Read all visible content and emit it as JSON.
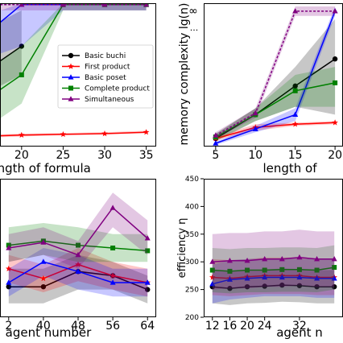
{
  "chart_data": [
    {
      "type": "line",
      "xlabel": "length of formula",
      "ylabel": "",
      "xlim": [
        17.4,
        36.2
      ],
      "ylim": [
        0,
        10
      ],
      "x": [
        15,
        20,
        25,
        30,
        35
      ],
      "xticks": [
        "20",
        "25",
        "30",
        "35"
      ],
      "series": [
        {
          "name": "Basic buchi",
          "color": "#000000",
          "marker": "circle",
          "values": [
            5,
            7,
            null,
            null,
            null
          ],
          "band_lo": [
            3.5,
            5,
            null,
            null,
            null
          ],
          "band_hi": [
            8,
            9.5,
            null,
            null,
            null
          ]
        },
        {
          "name": "First product",
          "color": "#ff0000",
          "marker": "star",
          "values": [
            0.7,
            0.8,
            0.85,
            0.9,
            1.0
          ],
          "band_lo": [
            0.6,
            0.7,
            0.8,
            0.85,
            0.95
          ],
          "band_hi": [
            0.8,
            0.9,
            0.95,
            1.0,
            1.1
          ]
        },
        {
          "name": "Basic poset",
          "color": "#0000ff",
          "marker": "triangle",
          "values": [
            7.5,
            9.9,
            9.9,
            9.9,
            9.9
          ],
          "band_lo": [
            6,
            7,
            9.5,
            9.5,
            9.5
          ],
          "band_hi": [
            9,
            10,
            10,
            10,
            10
          ]
        },
        {
          "name": "Complete product",
          "color": "#008000",
          "marker": "square",
          "values": [
            3,
            5,
            9.9,
            9.9,
            9.9
          ],
          "band_lo": [
            1,
            3,
            9.5,
            9.5,
            9.5
          ],
          "band_hi": [
            5,
            7,
            10,
            10,
            10
          ]
        },
        {
          "name": "Simultaneous",
          "color": "#800080",
          "marker": "triangle",
          "values": [
            9.9,
            9.9,
            9.9,
            9.9,
            9.9
          ],
          "band_lo": [
            9.5,
            9.5,
            9.5,
            9.5,
            9.5
          ],
          "band_hi": [
            10,
            10,
            10,
            10,
            10
          ]
        }
      ],
      "legend": "right",
      "grid": false
    },
    {
      "type": "line",
      "xlabel": "length of",
      "ylabel": "memory complexity lg(n)",
      "xlim": [
        3.5,
        21
      ],
      "ylim": [
        1,
        10
      ],
      "x": [
        5,
        10,
        15,
        20
      ],
      "xticks": [
        "5",
        "10",
        "15",
        "20"
      ],
      "yticks": [
        "∞",
        "..."
      ],
      "series": [
        {
          "name": "Basic buchi",
          "color": "#000000",
          "values": [
            1.5,
            3,
            4.8,
            6.5
          ],
          "band_lo": [
            1.3,
            2.6,
            3.5,
            3
          ],
          "band_hi": [
            1.8,
            3.4,
            6,
            9
          ]
        },
        {
          "name": "First product",
          "color": "#ff0000",
          "values": [
            1.5,
            2.2,
            2.4,
            2.5
          ],
          "band_lo": [
            1.4,
            2.0,
            2.3,
            2.4
          ],
          "band_hi": [
            1.6,
            2.4,
            2.5,
            2.6
          ]
        },
        {
          "name": "Basic poset",
          "color": "#0000ff",
          "values": [
            1.2,
            2.1,
            3,
            9.5
          ],
          "band_lo": [
            1.1,
            1.9,
            2.6,
            9.2
          ],
          "band_hi": [
            1.3,
            2.3,
            3.4,
            9.8
          ]
        },
        {
          "name": "Complete product",
          "color": "#008000",
          "values": [
            1.6,
            3,
            4.5,
            5
          ],
          "band_lo": [
            1.4,
            2.6,
            3.5,
            3.5
          ],
          "band_hi": [
            1.8,
            3.4,
            5.5,
            6
          ]
        },
        {
          "name": "Simultaneous",
          "color": "#800080",
          "values": [
            1.7,
            3.1,
            9.5,
            9.5
          ],
          "band_lo": [
            1.5,
            2.8,
            9.2,
            9.2
          ],
          "band_hi": [
            1.9,
            3.4,
            9.8,
            9.8
          ]
        }
      ],
      "grid": false
    },
    {
      "type": "line",
      "xlabel": "agent number",
      "ylabel": "",
      "xlim": [
        30,
        66
      ],
      "ylim": [
        0,
        10
      ],
      "x": [
        32,
        40,
        48,
        56,
        64
      ],
      "xticks": [
        "2",
        "40",
        "48",
        "56",
        "64"
      ],
      "series": [
        {
          "name": "Basic buchi",
          "color": "#000000",
          "values": [
            2.2,
            2.2,
            3.3,
            3.0,
            2.0
          ],
          "band_lo": [
            1.0,
            1.0,
            2.0,
            2.0,
            1.0
          ],
          "band_hi": [
            3.5,
            3.5,
            4.5,
            4.0,
            3.0
          ]
        },
        {
          "name": "First product",
          "color": "#ff0000",
          "values": [
            3.5,
            2.8,
            3.8,
            3.0,
            2.5
          ],
          "band_lo": [
            2.5,
            1.8,
            2.6,
            2.0,
            1.5
          ],
          "band_hi": [
            4.5,
            3.8,
            5.0,
            4.0,
            3.5
          ]
        },
        {
          "name": "Basic poset",
          "color": "#0000ff",
          "values": [
            2.5,
            4.0,
            3.3,
            2.5,
            2.5
          ],
          "band_lo": [
            1.5,
            3.0,
            2.0,
            1.5,
            1.5
          ],
          "band_hi": [
            3.5,
            5.0,
            4.5,
            3.5,
            3.5
          ]
        },
        {
          "name": "Complete product",
          "color": "#008000",
          "values": [
            5.2,
            5.5,
            5.2,
            5.0,
            4.8
          ],
          "band_lo": [
            4.0,
            4.5,
            4.0,
            4.0,
            4.0
          ],
          "band_hi": [
            6.5,
            6.8,
            6.5,
            6.0,
            6.0
          ]
        },
        {
          "name": "Simultaneous",
          "color": "#800080",
          "values": [
            5.0,
            5.4,
            4.5,
            7.9,
            5.7
          ],
          "band_lo": [
            4.0,
            4.5,
            3.5,
            6.5,
            4.5
          ],
          "band_hi": [
            6.0,
            6.5,
            5.5,
            9.0,
            7.0
          ]
        }
      ],
      "grid": false
    },
    {
      "type": "line",
      "xlabel": "agent n",
      "ylabel": "efficiency η",
      "xlim": [
        10,
        42
      ],
      "ylim": [
        200,
        450
      ],
      "x": [
        12,
        16,
        20,
        24,
        28,
        32,
        36,
        40
      ],
      "xticks": [
        "12",
        "16",
        "20",
        "24",
        "32"
      ],
      "yticks": [
        "200",
        "250",
        "300",
        "350",
        "400",
        "450"
      ],
      "series": [
        {
          "name": "Basic buchi",
          "color": "#000000",
          "values": [
            255,
            252,
            255,
            256,
            258,
            257,
            255,
            255
          ],
          "band_lo": [
            225,
            222,
            225,
            226,
            228,
            227,
            225,
            225
          ],
          "band_hi": [
            285,
            282,
            285,
            286,
            288,
            287,
            285,
            285
          ]
        },
        {
          "name": "First product",
          "color": "#ff0000",
          "values": [
            272,
            270,
            273,
            275,
            275,
            275,
            272,
            272
          ],
          "band_lo": [
            240,
            238,
            240,
            242,
            242,
            242,
            240,
            240
          ],
          "band_hi": [
            305,
            303,
            305,
            308,
            308,
            308,
            305,
            305
          ]
        },
        {
          "name": "Basic poset",
          "color": "#0000ff",
          "values": [
            260,
            268,
            270,
            272,
            272,
            272,
            270,
            270
          ],
          "band_lo": [
            225,
            232,
            235,
            238,
            238,
            238,
            235,
            235
          ],
          "band_hi": [
            295,
            303,
            305,
            306,
            306,
            306,
            305,
            305
          ]
        },
        {
          "name": "Complete product",
          "color": "#008000",
          "values": [
            285,
            283,
            285,
            285,
            286,
            286,
            285,
            290
          ],
          "band_lo": [
            245,
            243,
            245,
            245,
            246,
            246,
            245,
            250
          ],
          "band_hi": [
            325,
            323,
            325,
            325,
            326,
            326,
            325,
            330
          ]
        },
        {
          "name": "Simultaneous",
          "color": "#800080",
          "values": [
            300,
            302,
            302,
            305,
            305,
            308,
            305,
            305
          ],
          "band_lo": [
            250,
            252,
            252,
            255,
            255,
            258,
            255,
            255
          ],
          "band_hi": [
            350,
            352,
            352,
            355,
            355,
            358,
            355,
            355
          ]
        }
      ],
      "grid": false
    }
  ]
}
